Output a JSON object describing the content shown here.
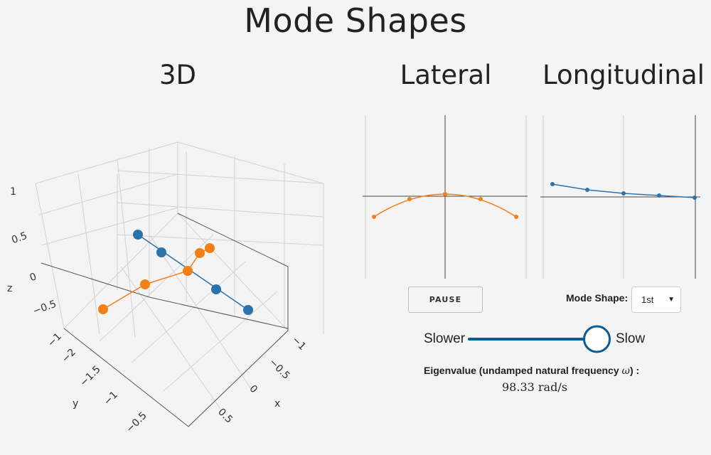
{
  "page": {
    "title": "Mode Shapes"
  },
  "panels": {
    "view3d": {
      "title": "3D"
    },
    "lateral": {
      "title": "Lateral"
    },
    "longitudinal": {
      "title": "Longitudinal"
    }
  },
  "axes3d": {
    "z_label": "z",
    "y_label": "y",
    "x_label": "x",
    "z_ticks": [
      "1",
      "0.5",
      "0",
      "−0.5",
      "−1"
    ],
    "y_ticks": [
      "−2",
      "−1.5",
      "−1",
      "−0.5"
    ],
    "x_ticks": [
      "−1",
      "−0.5",
      "0",
      "0.5"
    ]
  },
  "controls": {
    "pause_label": "PAUSE",
    "mode_shape_label": "Mode Shape:",
    "mode_shape_value": "1st",
    "slider_left_label": "Slower",
    "slider_right_label": "Slow",
    "slider_value_fraction": 0.88
  },
  "eigen": {
    "label_prefix": "Eigenvalue (undamped natural frequency ",
    "omega": "ω",
    "label_suffix": ") :",
    "value": "98.33 rad/s"
  },
  "colors": {
    "blue": "#2b73ad",
    "orange": "#f37f17",
    "slider": "#0b5c91"
  }
}
